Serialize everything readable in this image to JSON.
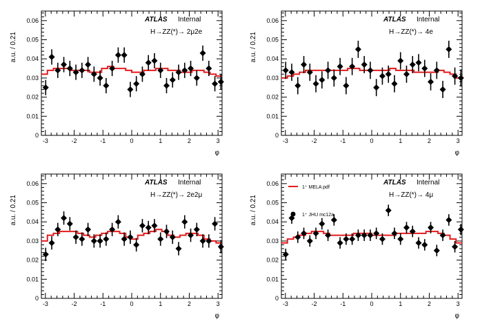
{
  "chart_data": [
    {
      "type": "scatter",
      "panel": "top-left",
      "label_atlas": "ATLAS",
      "label_status": "Internal",
      "channel": "H→ZZ(*)→ 2μ2e",
      "xlabel": "φ",
      "ylabel": "a.u. / 0.21",
      "xlim": [
        -3.14,
        3.14
      ],
      "ylim": [
        0,
        0.065
      ],
      "xticks": [
        "-3",
        "-2",
        "-1",
        "0",
        "1",
        "2",
        "3"
      ],
      "yticks": [
        "0",
        "0.01",
        "0.02",
        "0.03",
        "0.04",
        "0.05",
        "0.06"
      ],
      "series": [
        {
          "kind": "points",
          "x": [
            -2.99,
            -2.78,
            -2.57,
            -2.36,
            -2.15,
            -1.94,
            -1.73,
            -1.52,
            -1.31,
            -1.1,
            -0.89,
            -0.68,
            -0.47,
            -0.26,
            -0.05,
            0.16,
            0.37,
            0.58,
            0.79,
            1.0,
            1.21,
            1.42,
            1.63,
            1.84,
            2.05,
            2.26,
            2.47,
            2.68,
            2.89,
            3.1
          ],
          "y": [
            0.025,
            0.041,
            0.034,
            0.037,
            0.035,
            0.033,
            0.034,
            0.037,
            0.032,
            0.03,
            0.026,
            0.035,
            0.042,
            0.042,
            0.024,
            0.027,
            0.032,
            0.038,
            0.039,
            0.034,
            0.026,
            0.029,
            0.033,
            0.034,
            0.035,
            0.03,
            0.043,
            0.035,
            0.027,
            0.028
          ],
          "err": [
            0.004,
            0.004,
            0.004,
            0.004,
            0.004,
            0.004,
            0.004,
            0.004,
            0.004,
            0.004,
            0.004,
            0.004,
            0.004,
            0.004,
            0.004,
            0.004,
            0.004,
            0.004,
            0.004,
            0.004,
            0.004,
            0.004,
            0.004,
            0.004,
            0.004,
            0.004,
            0.004,
            0.004,
            0.004,
            0.004
          ]
        },
        {
          "kind": "step",
          "y": [
            0.032,
            0.034,
            0.035,
            0.035,
            0.035,
            0.034,
            0.034,
            0.034,
            0.033,
            0.033,
            0.035,
            0.036,
            0.035,
            0.035,
            0.034,
            0.033,
            0.033,
            0.034,
            0.034,
            0.035,
            0.035,
            0.034,
            0.034,
            0.033,
            0.033,
            0.034,
            0.034,
            0.033,
            0.032,
            0.031
          ]
        }
      ]
    },
    {
      "type": "scatter",
      "panel": "top-right",
      "label_atlas": "ATLAS",
      "label_status": "Internal",
      "channel": "H→ZZ(*)→ 4e",
      "xlabel": "φ",
      "ylabel": "a.u. / 0.21",
      "xlim": [
        -3.14,
        3.14
      ],
      "ylim": [
        0,
        0.065
      ],
      "xticks": [
        "-3",
        "-2",
        "-1",
        "0",
        "1",
        "2",
        "3"
      ],
      "yticks": [
        "0",
        "0.01",
        "0.02",
        "0.03",
        "0.04",
        "0.05",
        "0.06"
      ],
      "series": [
        {
          "kind": "points",
          "x": [
            -2.99,
            -2.78,
            -2.57,
            -2.36,
            -2.15,
            -1.94,
            -1.73,
            -1.52,
            -1.31,
            -1.1,
            -0.89,
            -0.68,
            -0.47,
            -0.26,
            -0.05,
            0.16,
            0.37,
            0.58,
            0.79,
            1.0,
            1.21,
            1.42,
            1.63,
            1.84,
            2.05,
            2.26,
            2.47,
            2.68,
            2.89,
            3.1
          ],
          "y": [
            0.034,
            0.033,
            0.026,
            0.037,
            0.033,
            0.027,
            0.029,
            0.034,
            0.03,
            0.036,
            0.026,
            0.036,
            0.045,
            0.037,
            0.034,
            0.025,
            0.031,
            0.032,
            0.027,
            0.039,
            0.032,
            0.037,
            0.038,
            0.035,
            0.028,
            0.034,
            0.024,
            0.045,
            0.031,
            0.03
          ],
          "err": [
            0.0045,
            0.0045,
            0.0045,
            0.0045,
            0.0045,
            0.0045,
            0.0045,
            0.0045,
            0.0045,
            0.0045,
            0.0045,
            0.0045,
            0.0045,
            0.0045,
            0.0045,
            0.0045,
            0.0045,
            0.0045,
            0.0045,
            0.0045,
            0.0045,
            0.0045,
            0.0045,
            0.0045,
            0.0045,
            0.0045,
            0.0045,
            0.0045,
            0.0045,
            0.0045
          ]
        },
        {
          "kind": "step",
          "y": [
            0.03,
            0.031,
            0.032,
            0.033,
            0.034,
            0.034,
            0.034,
            0.034,
            0.034,
            0.034,
            0.034,
            0.035,
            0.035,
            0.034,
            0.034,
            0.034,
            0.034,
            0.034,
            0.035,
            0.034,
            0.034,
            0.034,
            0.033,
            0.033,
            0.033,
            0.033,
            0.034,
            0.033,
            0.032,
            0.03
          ]
        }
      ]
    },
    {
      "type": "scatter",
      "panel": "bottom-left",
      "label_atlas": "ATLAS",
      "label_status": "Internal",
      "channel": "H→ZZ(*)→ 2e2μ",
      "xlabel": "φ",
      "ylabel": "a.u. / 0.21",
      "xlim": [
        -3.14,
        3.14
      ],
      "ylim": [
        0,
        0.065
      ],
      "xticks": [
        "-3",
        "-2",
        "-1",
        "0",
        "1",
        "2",
        "3"
      ],
      "yticks": [
        "0",
        "0.01",
        "0.02",
        "0.03",
        "0.04",
        "0.05",
        "0.06"
      ],
      "series": [
        {
          "kind": "points",
          "x": [
            -2.99,
            -2.78,
            -2.57,
            -2.36,
            -2.15,
            -1.94,
            -1.73,
            -1.52,
            -1.31,
            -1.1,
            -0.89,
            -0.68,
            -0.47,
            -0.26,
            -0.05,
            0.16,
            0.37,
            0.58,
            0.79,
            1.0,
            1.21,
            1.42,
            1.63,
            1.84,
            2.05,
            2.26,
            2.47,
            2.68,
            2.89,
            3.1
          ],
          "y": [
            0.023,
            0.029,
            0.036,
            0.042,
            0.039,
            0.032,
            0.031,
            0.036,
            0.03,
            0.03,
            0.031,
            0.036,
            0.04,
            0.031,
            0.032,
            0.028,
            0.038,
            0.037,
            0.038,
            0.031,
            0.035,
            0.032,
            0.026,
            0.04,
            0.033,
            0.036,
            0.03,
            0.03,
            0.039,
            0.027
          ],
          "err": [
            0.0035,
            0.0035,
            0.0035,
            0.0035,
            0.0035,
            0.0035,
            0.0035,
            0.0035,
            0.0035,
            0.0035,
            0.0035,
            0.0035,
            0.0035,
            0.0035,
            0.0035,
            0.0035,
            0.0035,
            0.0035,
            0.0035,
            0.0035,
            0.0035,
            0.0035,
            0.0035,
            0.0035,
            0.0035,
            0.0035,
            0.0035,
            0.0035,
            0.0035,
            0.0035
          ]
        },
        {
          "kind": "step",
          "y": [
            0.03,
            0.033,
            0.034,
            0.035,
            0.035,
            0.035,
            0.034,
            0.033,
            0.032,
            0.033,
            0.034,
            0.035,
            0.035,
            0.034,
            0.032,
            0.031,
            0.033,
            0.034,
            0.035,
            0.036,
            0.035,
            0.033,
            0.032,
            0.033,
            0.034,
            0.034,
            0.033,
            0.031,
            0.03,
            0.029
          ]
        }
      ]
    },
    {
      "type": "scatter",
      "panel": "bottom-right",
      "label_atlas": "ATLAS",
      "label_status": "Internal",
      "channel": "H→ZZ(*)→ 4μ",
      "xlabel": "φ",
      "ylabel": "a.u. / 0.21",
      "xlim": [
        -3.14,
        3.14
      ],
      "ylim": [
        0,
        0.065
      ],
      "xticks": [
        "-3",
        "-2",
        "-1",
        "0",
        "1",
        "2",
        "3"
      ],
      "yticks": [
        "0",
        "0.01",
        "0.02",
        "0.03",
        "0.04",
        "0.05",
        "0.06"
      ],
      "legend": [
        {
          "label": "1⁺ MELA pdf",
          "kind": "step"
        },
        {
          "label": "1⁺ JHU mc12a",
          "kind": "points"
        }
      ],
      "series": [
        {
          "kind": "points",
          "x": [
            -2.99,
            -2.78,
            -2.57,
            -2.36,
            -2.15,
            -1.94,
            -1.73,
            -1.52,
            -1.31,
            -1.1,
            -0.89,
            -0.68,
            -0.47,
            -0.26,
            -0.05,
            0.16,
            0.37,
            0.58,
            0.79,
            1.0,
            1.21,
            1.42,
            1.63,
            1.84,
            2.05,
            2.26,
            2.47,
            2.68,
            2.89,
            3.1
          ],
          "y": [
            0.023,
            0.042,
            0.032,
            0.034,
            0.03,
            0.034,
            0.039,
            0.033,
            0.041,
            0.029,
            0.031,
            0.031,
            0.033,
            0.033,
            0.033,
            0.034,
            0.031,
            0.046,
            0.034,
            0.031,
            0.037,
            0.035,
            0.029,
            0.028,
            0.037,
            0.025,
            0.033,
            0.041,
            0.027,
            0.036
          ],
          "err": [
            0.003,
            0.003,
            0.003,
            0.003,
            0.003,
            0.003,
            0.003,
            0.003,
            0.003,
            0.003,
            0.003,
            0.003,
            0.003,
            0.003,
            0.003,
            0.003,
            0.003,
            0.003,
            0.003,
            0.003,
            0.003,
            0.003,
            0.003,
            0.003,
            0.003,
            0.003,
            0.003,
            0.003,
            0.003,
            0.003
          ]
        },
        {
          "kind": "step",
          "y": [
            0.029,
            0.031,
            0.032,
            0.033,
            0.034,
            0.035,
            0.035,
            0.034,
            0.033,
            0.033,
            0.033,
            0.033,
            0.034,
            0.034,
            0.034,
            0.033,
            0.033,
            0.033,
            0.033,
            0.034,
            0.034,
            0.034,
            0.034,
            0.034,
            0.035,
            0.035,
            0.034,
            0.033,
            0.031,
            0.029
          ]
        }
      ]
    }
  ]
}
